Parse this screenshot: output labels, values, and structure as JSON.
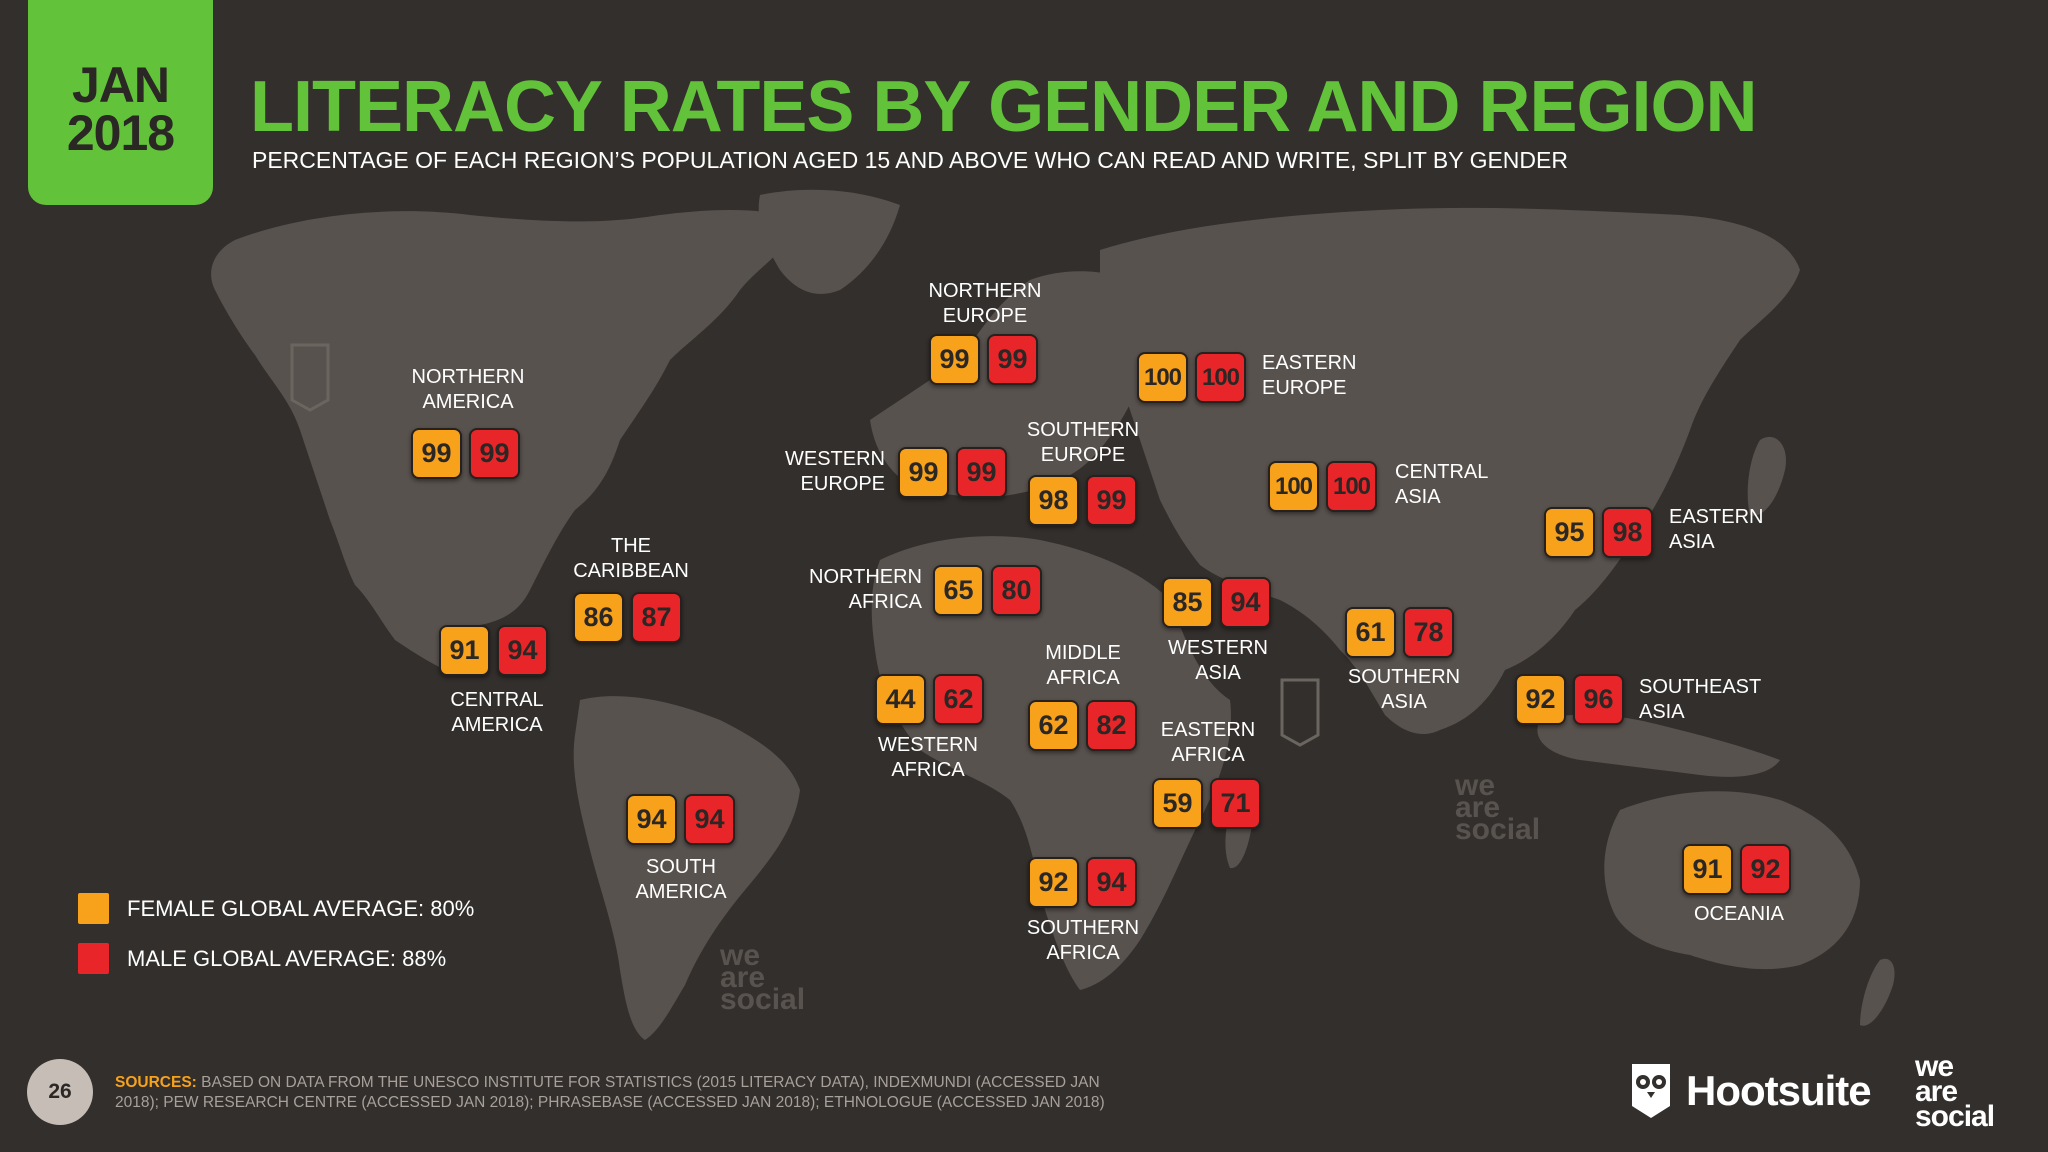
{
  "header": {
    "date_month": "JAN",
    "date_year": "2018",
    "title": "LITERACY RATES BY GENDER AND REGION",
    "subtitle": "PERCENTAGE OF EACH REGION’S POPULATION AGED 15 AND ABOVE WHO CAN READ AND WRITE, SPLIT BY GENDER"
  },
  "colors": {
    "female": "#f8a21c",
    "male": "#e8262a",
    "accent": "#62c23a",
    "background": "#332f2c",
    "land": "#58524e"
  },
  "regions": {
    "northern_america": {
      "name_line1": "NORTHERN",
      "name_line2": "AMERICA",
      "female": "99",
      "male": "99"
    },
    "central_america": {
      "name_line1": "CENTRAL",
      "name_line2": "AMERICA",
      "female": "91",
      "male": "94"
    },
    "caribbean": {
      "name_line1": "THE",
      "name_line2": "CARIBBEAN",
      "female": "86",
      "male": "87"
    },
    "south_america": {
      "name_line1": "SOUTH",
      "name_line2": "AMERICA",
      "female": "94",
      "male": "94"
    },
    "northern_europe": {
      "name_line1": "NORTHERN",
      "name_line2": "EUROPE",
      "female": "99",
      "male": "99"
    },
    "western_europe": {
      "name_line1": "WESTERN",
      "name_line2": "EUROPE",
      "female": "99",
      "male": "99"
    },
    "southern_europe": {
      "name_line1": "SOUTHERN",
      "name_line2": "EUROPE",
      "female": "98",
      "male": "99"
    },
    "eastern_europe": {
      "name_line1": "EASTERN",
      "name_line2": "EUROPE",
      "female": "100",
      "male": "100"
    },
    "northern_africa": {
      "name_line1": "NORTHERN",
      "name_line2": "AFRICA",
      "female": "65",
      "male": "80"
    },
    "western_africa": {
      "name_line1": "WESTERN",
      "name_line2": "AFRICA",
      "female": "44",
      "male": "62"
    },
    "middle_africa": {
      "name_line1": "MIDDLE",
      "name_line2": "AFRICA",
      "female": "62",
      "male": "82"
    },
    "eastern_africa": {
      "name_line1": "EASTERN",
      "name_line2": "AFRICA",
      "female": "59",
      "male": "71"
    },
    "southern_africa": {
      "name_line1": "SOUTHERN",
      "name_line2": "AFRICA",
      "female": "92",
      "male": "94"
    },
    "western_asia": {
      "name_line1": "WESTERN",
      "name_line2": "ASIA",
      "female": "85",
      "male": "94"
    },
    "central_asia": {
      "name_line1": "CENTRAL",
      "name_line2": "ASIA",
      "female": "100",
      "male": "100"
    },
    "southern_asia": {
      "name_line1": "SOUTHERN",
      "name_line2": "ASIA",
      "female": "61",
      "male": "78"
    },
    "eastern_asia": {
      "name_line1": "EASTERN",
      "name_line2": "ASIA",
      "female": "95",
      "male": "98"
    },
    "southeast_asia": {
      "name_line1": "SOUTHEAST",
      "name_line2": "ASIA",
      "female": "92",
      "male": "96"
    },
    "oceania": {
      "name_line1": "OCEANIA",
      "female": "91",
      "male": "92"
    }
  },
  "legend": {
    "female_label": "FEMALE GLOBAL AVERAGE: 80%",
    "male_label": "MALE GLOBAL AVERAGE: 88%"
  },
  "footer": {
    "page_number": "26",
    "sources_label": "SOURCES:",
    "sources_text": "BASED ON DATA FROM THE UNESCO INSTITUTE FOR STATISTICS (2015 LITERACY DATA), INDEXMUNDI (ACCESSED JAN 2018); PEW RESEARCH CENTRE (ACCESSED JAN 2018); PHRASEBASE (ACCESSED JAN 2018); ETHNOLOGUE (ACCESSED JAN 2018)",
    "brand_hootsuite": "Hootsuite",
    "brand_was_1": "we",
    "brand_was_2": "are",
    "brand_was_3": "social"
  },
  "watermark": {
    "line1": "we",
    "line2": "are",
    "line3": "social"
  }
}
